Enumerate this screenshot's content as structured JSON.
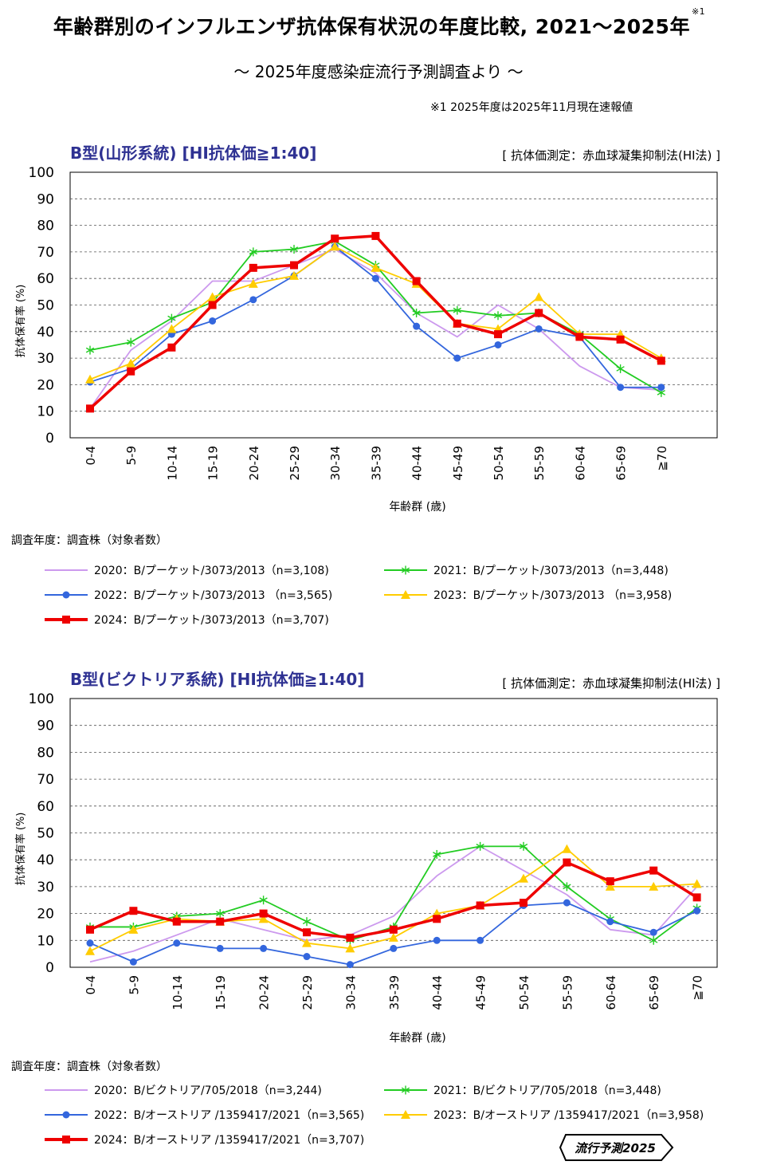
{
  "header": {
    "title": "年齢群別のインフルエンザ抗体保有状況の年度比較, 2021～2025年",
    "title_note_mark": "※1",
    "subtitle": "～ 2025年度感染症流行予測調査より ～",
    "note": "※1  2025年度は2025年11月現在速報値"
  },
  "badge": {
    "text": "流行予測2025"
  },
  "colors": {
    "2020": "#cc99ee",
    "2021": "#22cc22",
    "2022": "#3366dd",
    "2023": "#ffcc00",
    "2024": "#ee0000"
  },
  "chart_data": [
    {
      "type": "line",
      "title": "B型(山形系統) [HI抗体価≧1:40]",
      "method": "[ 抗体価測定：赤血球凝集抑制法(HI法) ]",
      "xlabel": "年齢群 (歳)",
      "ylabel": "抗体保有率 (%)",
      "ylim": [
        0,
        100
      ],
      "yticks": [
        0,
        10,
        20,
        30,
        40,
        50,
        60,
        70,
        80,
        90,
        100
      ],
      "grid": true,
      "categories": [
        "0-4",
        "5-9",
        "10-14",
        "15-19",
        "20-24",
        "25-29",
        "30-34",
        "35-39",
        "40-44",
        "45-49",
        "50-54",
        "55-59",
        "60-64",
        "65-69",
        "≧70"
      ],
      "legend_title": "調査年度：調査株（対象者数）",
      "series": [
        {
          "key": "2020",
          "name": "2020：B/プーケット/3073/2013（n=3,108)",
          "marker": "line",
          "values": [
            11,
            33,
            44,
            59,
            59,
            65,
            71,
            62,
            47,
            38,
            50,
            41,
            27,
            19,
            18
          ]
        },
        {
          "key": "2021",
          "name": "2021：B/プーケット/3073/2013（n=3,448)",
          "marker": "star",
          "values": [
            33,
            36,
            45,
            51,
            70,
            71,
            74,
            65,
            47,
            48,
            46,
            47,
            39,
            26,
            17
          ]
        },
        {
          "key": "2022",
          "name": "2022：B/プーケット/3073/2013 （n=3,565)",
          "marker": "circle",
          "values": [
            21,
            26,
            39,
            44,
            52,
            61,
            72,
            60,
            42,
            30,
            35,
            41,
            38,
            19,
            19
          ]
        },
        {
          "key": "2023",
          "name": "2023：B/プーケット/3073/2013 （n=3,958)",
          "marker": "triangle",
          "values": [
            22,
            28,
            41,
            53,
            58,
            61,
            72,
            64,
            58,
            43,
            41,
            53,
            39,
            39,
            30
          ]
        },
        {
          "key": "2024",
          "name": "2024：B/プーケット/3073/2013（n=3,707)",
          "marker": "square",
          "values": [
            11,
            25,
            34,
            50,
            64,
            65,
            75,
            76,
            59,
            43,
            39,
            47,
            38,
            37,
            29
          ]
        }
      ]
    },
    {
      "type": "line",
      "title": "B型(ビクトリア系統) [HI抗体価≧1:40]",
      "method": "[ 抗体価測定：赤血球凝集抑制法(HI法) ]",
      "xlabel": "年齢群 (歳)",
      "ylabel": "抗体保有率 (%)",
      "ylim": [
        0,
        100
      ],
      "yticks": [
        0,
        10,
        20,
        30,
        40,
        50,
        60,
        70,
        80,
        90,
        100
      ],
      "grid": true,
      "categories": [
        "0-4",
        "5-9",
        "10-14",
        "15-19",
        "20-24",
        "25-29",
        "30-34",
        "35-39",
        "40-44",
        "45-49",
        "50-54",
        "55-59",
        "60-64",
        "65-69",
        "≧70"
      ],
      "legend_title": "調査年度：調査株（対象者数）",
      "series": [
        {
          "key": "2020",
          "name": "2020：B/ビクトリア/705/2018（n=3,244)",
          "marker": "line",
          "values": [
            2,
            6,
            12,
            18,
            14,
            10,
            12,
            19,
            34,
            45,
            36,
            27,
            14,
            12,
            30
          ]
        },
        {
          "key": "2021",
          "name": "2021：B/ビクトリア/705/2018（n=3,448)",
          "marker": "star",
          "values": [
            15,
            15,
            19,
            20,
            25,
            17,
            10,
            15,
            42,
            45,
            45,
            30,
            18,
            10,
            22
          ]
        },
        {
          "key": "2022",
          "name": "2022：B/オーストリア /1359417/2021（n=3,565)",
          "marker": "circle",
          "values": [
            9,
            2,
            9,
            7,
            7,
            4,
            1,
            7,
            10,
            10,
            23,
            24,
            17,
            13,
            21
          ]
        },
        {
          "key": "2023",
          "name": "2023：B/オーストリア /1359417/2021（n=3,958)",
          "marker": "triangle",
          "values": [
            6,
            14,
            18,
            17,
            18,
            9,
            7,
            11,
            20,
            23,
            33,
            44,
            30,
            30,
            31
          ]
        },
        {
          "key": "2024",
          "name": "2024：B/オーストリア /1359417/2021（n=3,707)",
          "marker": "square",
          "values": [
            14,
            21,
            17,
            17,
            20,
            13,
            11,
            14,
            18,
            23,
            24,
            39,
            32,
            36,
            26
          ]
        }
      ]
    }
  ]
}
